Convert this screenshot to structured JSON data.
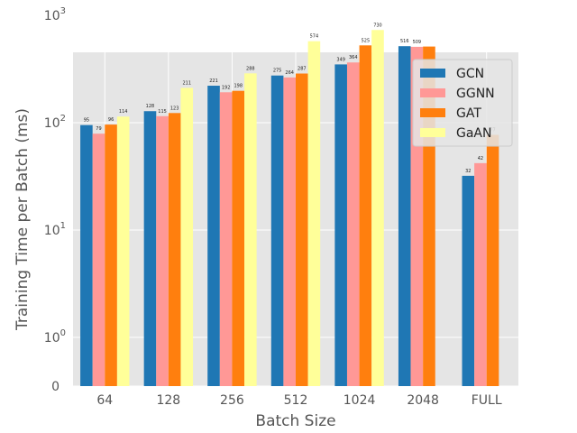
{
  "chart_data": {
    "type": "bar",
    "categories": [
      "64",
      "128",
      "256",
      "512",
      "1024",
      "2048",
      "FULL"
    ],
    "series": [
      {
        "name": "GCN",
        "color": "#1f77b4",
        "values": [
          95,
          128,
          221,
          275,
          349,
          516,
          32
        ]
      },
      {
        "name": "GGNN",
        "color": "#ff9896",
        "values": [
          79,
          115,
          192,
          264,
          364,
          509,
          42
        ]
      },
      {
        "name": "GAT",
        "color": "#ff7f0e",
        "values": [
          96,
          123,
          198,
          287,
          525,
          512,
          77
        ]
      },
      {
        "name": "GaAN",
        "color": "#ffff99",
        "values": [
          114,
          211,
          288,
          574,
          730,
          null,
          null
        ]
      }
    ],
    "data_labels": [
      [
        "95",
        "128",
        "221",
        "275",
        "349",
        "516",
        "32"
      ],
      [
        "79",
        "115",
        "192",
        "264",
        "364",
        "509",
        "42"
      ],
      [
        "96",
        "123",
        "198",
        "287",
        "525",
        "",
        "77"
      ],
      [
        "114",
        "211",
        "288",
        "574",
        "730",
        "",
        ""
      ]
    ],
    "xlabel": "Batch Size",
    "ylabel": "Training Time per Batch (ms)",
    "ylim": [
      0,
      1000
    ],
    "yscale": "symlog",
    "yticks": [
      {
        "value": 0,
        "base": "0",
        "exp": ""
      },
      {
        "value": 1,
        "base": "10",
        "exp": "0"
      },
      {
        "value": 10,
        "base": "10",
        "exp": "1"
      },
      {
        "value": 100,
        "base": "10",
        "exp": "2"
      },
      {
        "value": 1000,
        "base": "10",
        "exp": "3"
      }
    ],
    "grid": true,
    "legend_position": "top-right",
    "background": "#e5e5e5"
  }
}
